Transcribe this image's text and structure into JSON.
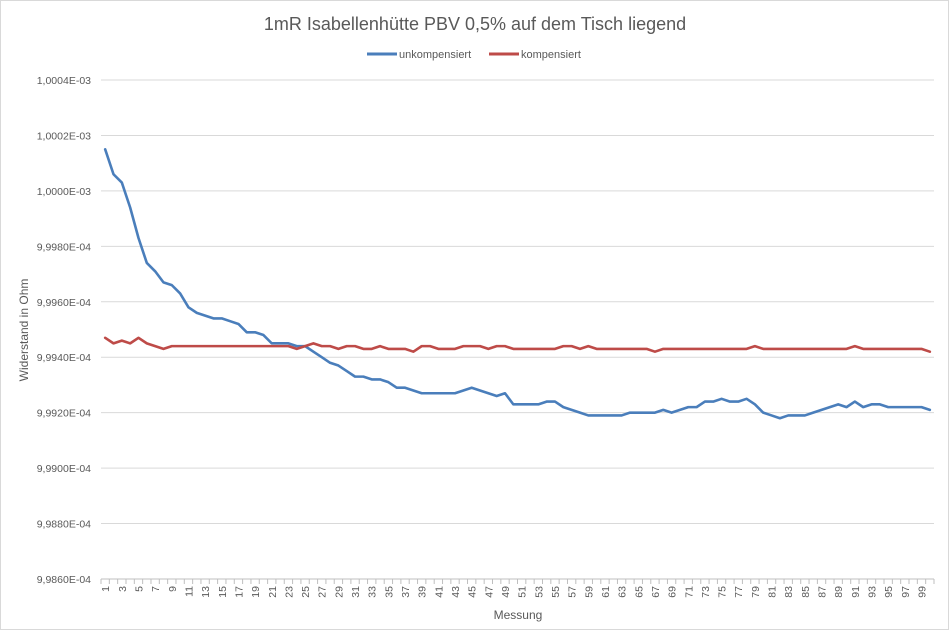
{
  "chart_data": {
    "type": "line",
    "title": "1mR Isabellenhütte PBV 0,5% auf dem Tisch liegend",
    "xlabel": "Messung",
    "ylabel": "Widerstand in Ohm",
    "x": [
      1,
      2,
      3,
      4,
      5,
      6,
      7,
      8,
      9,
      10,
      11,
      12,
      13,
      14,
      15,
      16,
      17,
      18,
      19,
      20,
      21,
      22,
      23,
      24,
      25,
      26,
      27,
      28,
      29,
      30,
      31,
      32,
      33,
      34,
      35,
      36,
      37,
      38,
      39,
      40,
      41,
      42,
      43,
      44,
      45,
      46,
      47,
      48,
      49,
      50,
      51,
      52,
      53,
      54,
      55,
      56,
      57,
      58,
      59,
      60,
      61,
      62,
      63,
      64,
      65,
      66,
      67,
      68,
      69,
      70,
      71,
      72,
      73,
      74,
      75,
      76,
      77,
      78,
      79,
      80,
      81,
      82,
      83,
      84,
      85,
      86,
      87,
      88,
      89,
      90,
      91,
      92,
      93,
      94,
      95,
      96,
      97,
      98,
      99,
      100
    ],
    "x_tick_labels": [
      "1",
      "3",
      "5",
      "7",
      "9",
      "11",
      "13",
      "15",
      "17",
      "19",
      "21",
      "23",
      "25",
      "27",
      "29",
      "31",
      "33",
      "35",
      "37",
      "39",
      "41",
      "43",
      "45",
      "47",
      "49",
      "51",
      "53",
      "55",
      "57",
      "59",
      "61",
      "63",
      "65",
      "67",
      "69",
      "71",
      "73",
      "75",
      "77",
      "79",
      "81",
      "83",
      "85",
      "87",
      "89",
      "91",
      "93",
      "95",
      "97",
      "99"
    ],
    "ylim": [
      0.0009986,
      0.0010004
    ],
    "y_ticks": [
      {
        "value": 0.0010004,
        "label": "1,0004E-03"
      },
      {
        "value": 0.0010002,
        "label": "1,0002E-03"
      },
      {
        "value": 0.001,
        "label": "1,0000E-03"
      },
      {
        "value": 0.0009998,
        "label": "9,9980E-04"
      },
      {
        "value": 0.0009996,
        "label": "9,9960E-04"
      },
      {
        "value": 0.0009994,
        "label": "9,9940E-04"
      },
      {
        "value": 0.0009992,
        "label": "9,9920E-04"
      },
      {
        "value": 0.000999,
        "label": "9,9900E-04"
      },
      {
        "value": 0.0009988,
        "label": "9,9880E-04"
      },
      {
        "value": 0.0009986,
        "label": "9,9860E-04"
      }
    ],
    "grid": true,
    "legend_position": "top",
    "series": [
      {
        "name": "unkompensiert",
        "color": "#4a7ebb",
        "values": [
          0.00100015,
          0.00100006,
          0.00100003,
          0.00099994,
          0.00099983,
          0.00099974,
          0.00099971,
          0.00099967,
          0.00099966,
          0.00099963,
          0.00099958,
          0.00099956,
          0.00099955,
          0.00099954,
          0.00099954,
          0.00099953,
          0.00099952,
          0.00099949,
          0.00099949,
          0.00099948,
          0.00099945,
          0.00099945,
          0.00099945,
          0.00099944,
          0.00099944,
          0.00099942,
          0.0009994,
          0.00099938,
          0.00099937,
          0.00099935,
          0.00099933,
          0.00099933,
          0.00099932,
          0.00099932,
          0.00099931,
          0.00099929,
          0.00099929,
          0.00099928,
          0.00099927,
          0.00099927,
          0.00099927,
          0.00099927,
          0.00099927,
          0.00099928,
          0.00099929,
          0.00099928,
          0.00099927,
          0.00099926,
          0.00099927,
          0.00099923,
          0.00099923,
          0.00099923,
          0.00099923,
          0.00099924,
          0.00099924,
          0.00099922,
          0.00099921,
          0.0009992,
          0.00099919,
          0.00099919,
          0.00099919,
          0.00099919,
          0.00099919,
          0.0009992,
          0.0009992,
          0.0009992,
          0.0009992,
          0.00099921,
          0.0009992,
          0.00099921,
          0.00099922,
          0.00099922,
          0.00099924,
          0.00099924,
          0.00099925,
          0.00099924,
          0.00099924,
          0.00099925,
          0.00099923,
          0.0009992,
          0.00099919,
          0.00099918,
          0.00099919,
          0.00099919,
          0.00099919,
          0.0009992,
          0.00099921,
          0.00099922,
          0.00099923,
          0.00099922,
          0.00099924,
          0.00099922,
          0.00099923,
          0.00099923,
          0.00099922,
          0.00099922,
          0.00099922,
          0.00099922,
          0.00099922,
          0.00099921
        ]
      },
      {
        "name": "kompensiert",
        "color": "#be4b48",
        "values": [
          0.00099947,
          0.00099945,
          0.00099946,
          0.00099945,
          0.00099947,
          0.00099945,
          0.00099944,
          0.00099943,
          0.00099944,
          0.00099944,
          0.00099944,
          0.00099944,
          0.00099944,
          0.00099944,
          0.00099944,
          0.00099944,
          0.00099944,
          0.00099944,
          0.00099944,
          0.00099944,
          0.00099944,
          0.00099944,
          0.00099944,
          0.00099943,
          0.00099944,
          0.00099945,
          0.00099944,
          0.00099944,
          0.00099943,
          0.00099944,
          0.00099944,
          0.00099943,
          0.00099943,
          0.00099944,
          0.00099943,
          0.00099943,
          0.00099943,
          0.00099942,
          0.00099944,
          0.00099944,
          0.00099943,
          0.00099943,
          0.00099943,
          0.00099944,
          0.00099944,
          0.00099944,
          0.00099943,
          0.00099944,
          0.00099944,
          0.00099943,
          0.00099943,
          0.00099943,
          0.00099943,
          0.00099943,
          0.00099943,
          0.00099944,
          0.00099944,
          0.00099943,
          0.00099944,
          0.00099943,
          0.00099943,
          0.00099943,
          0.00099943,
          0.00099943,
          0.00099943,
          0.00099943,
          0.00099942,
          0.00099943,
          0.00099943,
          0.00099943,
          0.00099943,
          0.00099943,
          0.00099943,
          0.00099943,
          0.00099943,
          0.00099943,
          0.00099943,
          0.00099943,
          0.00099944,
          0.00099943,
          0.00099943,
          0.00099943,
          0.00099943,
          0.00099943,
          0.00099943,
          0.00099943,
          0.00099943,
          0.00099943,
          0.00099943,
          0.00099943,
          0.00099944,
          0.00099943,
          0.00099943,
          0.00099943,
          0.00099943,
          0.00099943,
          0.00099943,
          0.00099943,
          0.00099943,
          0.00099942
        ]
      }
    ]
  }
}
